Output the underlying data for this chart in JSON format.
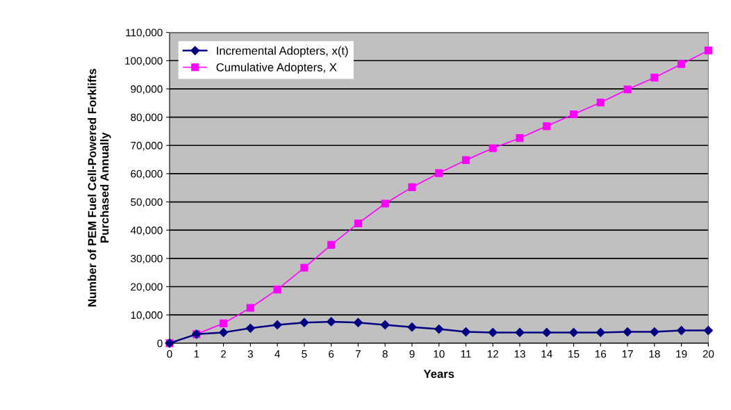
{
  "chart_data": {
    "type": "line",
    "xlabel": "Years",
    "ylabel": "Number of PEM Fuel Cell-Powered Forklifts\nPurchased Annually",
    "x": [
      0,
      1,
      2,
      3,
      4,
      5,
      6,
      7,
      8,
      9,
      10,
      11,
      12,
      13,
      14,
      15,
      16,
      17,
      18,
      19,
      20
    ],
    "series": [
      {
        "name": "Incremental Adopters, x(t)",
        "color": "#000080",
        "marker": "diamond",
        "values": [
          0,
          3200,
          3800,
          5300,
          6500,
          7300,
          7600,
          7300,
          6500,
          5700,
          5000,
          4000,
          3800,
          3800,
          3800,
          3800,
          3800,
          4000,
          4000,
          4500,
          4500
        ]
      },
      {
        "name": "Cumulative Adopters, X",
        "color": "#ff00ff",
        "marker": "square",
        "values": [
          0,
          3200,
          7000,
          12500,
          19000,
          26700,
          34800,
          42400,
          49400,
          55200,
          60200,
          64800,
          69000,
          72600,
          76800,
          81000,
          85200,
          89800,
          94000,
          98800,
          103600
        ]
      }
    ],
    "xlim": [
      0,
      20
    ],
    "xticks": [
      0,
      1,
      2,
      3,
      4,
      5,
      6,
      7,
      8,
      9,
      10,
      11,
      12,
      13,
      14,
      15,
      16,
      17,
      18,
      19,
      20
    ],
    "ylim": [
      0,
      110000
    ],
    "yticks": [
      {
        "value": 0,
        "label": "0"
      },
      {
        "value": 10000,
        "label": "10,000"
      },
      {
        "value": 20000,
        "label": "20,000"
      },
      {
        "value": 30000,
        "label": "30,000"
      },
      {
        "value": 40000,
        "label": "40,000"
      },
      {
        "value": 50000,
        "label": "50,000"
      },
      {
        "value": 60000,
        "label": "60,000"
      },
      {
        "value": 70000,
        "label": "70,000"
      },
      {
        "value": 80000,
        "label": "80,000"
      },
      {
        "value": 90000,
        "label": "90,000"
      },
      {
        "value": 100000,
        "label": "100,000"
      },
      {
        "value": 110000,
        "label": "110,000"
      }
    ],
    "grid": "y",
    "legend": "top left",
    "line_style": "solid"
  }
}
